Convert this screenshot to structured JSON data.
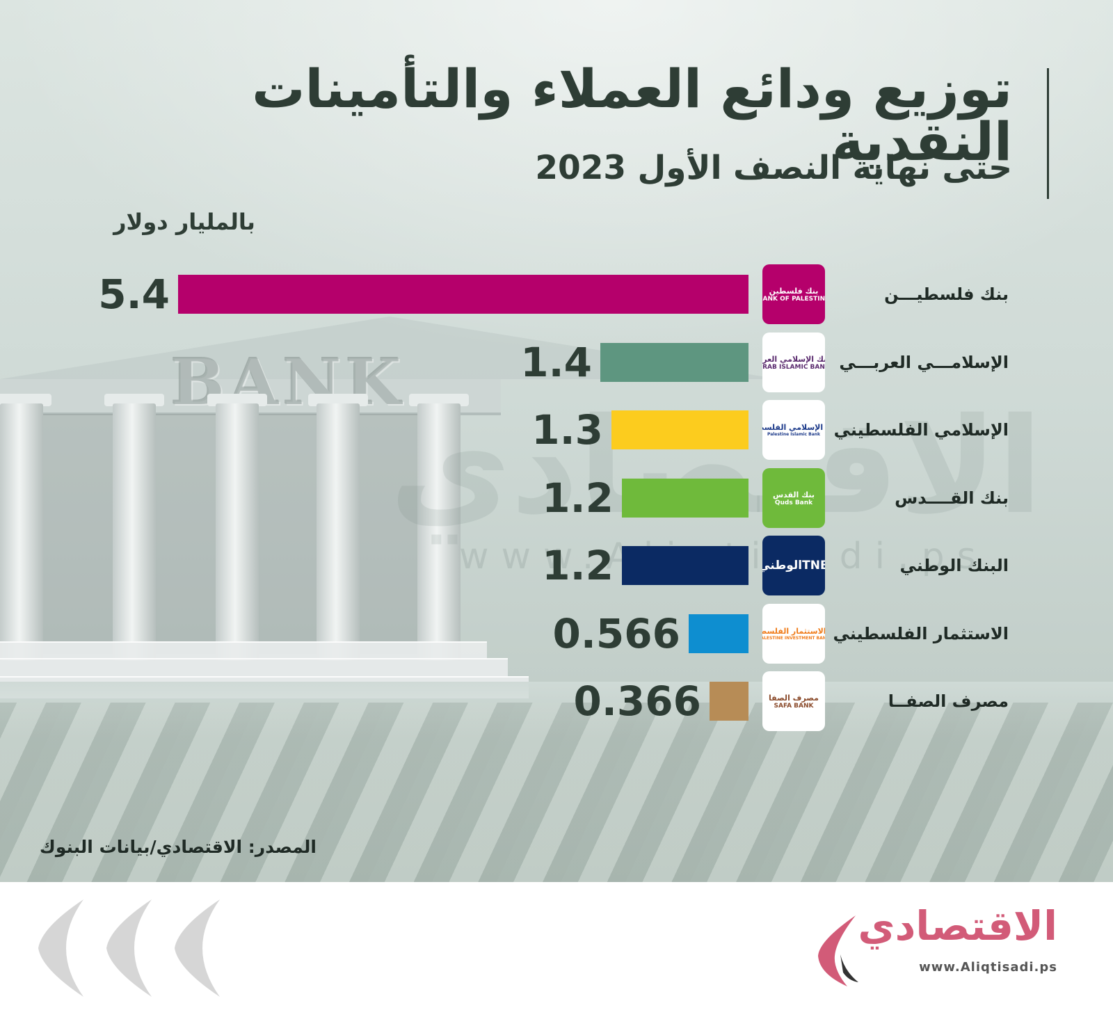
{
  "header": {
    "title": "توزيع ودائع العملاء والتأمينات النقدية",
    "subtitle": "حتى نهاية النصف الأول 2023",
    "unit": "بالمليار دولار"
  },
  "background": {
    "building_word": "BANK",
    "watermark_arabic": "الاقتصادي",
    "watermark_url": "www.Aliqtisadi.ps"
  },
  "chart_data": {
    "type": "bar",
    "orientation": "horizontal",
    "categories": [
      "بنك فلسطيـــن",
      "الإسلامـــي العربـــي",
      "الإسلامي الفلسطيني",
      "بنك القــــدس",
      "البنك الوطني",
      "الاستثمار الفلسطيني",
      "مصرف الصفــا"
    ],
    "values": [
      5.4,
      1.4,
      1.3,
      1.2,
      1.2,
      0.566,
      0.366
    ],
    "value_labels": [
      "5.4",
      "1.4",
      "1.3",
      "1.2",
      "1.2",
      "0.566",
      "0.366"
    ],
    "colors": [
      "#b5006b",
      "#5e9680",
      "#fccc1e",
      "#6fba3b",
      "#0b2a63",
      "#0e8ed0",
      "#b78c56"
    ],
    "title": "توزيع ودائع العملاء والتأمينات النقدية",
    "subtitle": "حتى نهاية النصف الأول 2023",
    "unit": "بالمليار دولار",
    "xlim": [
      0,
      5.4
    ],
    "grid": false
  },
  "logos": [
    {
      "icon": "bank-of-palestine-logo-icon",
      "text_ar": "بنك فلسطين",
      "text_en": "BANK OF PALESTINE",
      "bg": "#b5006b",
      "fg": "#ffffff"
    },
    {
      "icon": "arab-islamic-bank-logo-icon",
      "text_ar": "البنك الإسلامي العربي",
      "text_en": "ARAB ISLAMIC BANK",
      "bg": "#ffffff",
      "fg": "#5a2a6e"
    },
    {
      "icon": "palestine-islamic-bank-logo-icon",
      "text_ar": "البنك الإسلامي الفلسطيني",
      "text_en": "Palestine Islamic Bank",
      "bg": "#ffffff",
      "fg": "#1c3a8a"
    },
    {
      "icon": "quds-bank-logo-icon",
      "text_ar": "بنك القدس",
      "text_en": "Quds Bank",
      "bg": "#6fba3b",
      "fg": "#ffffff"
    },
    {
      "icon": "tnb-logo-icon",
      "text_ar": "TNBالوطني",
      "text_en": "",
      "bg": "#0b2a63",
      "fg": "#ffffff"
    },
    {
      "icon": "palestine-investment-bank-logo-icon",
      "text_ar": "بنك الاستثمار الفلسطيني",
      "text_en": "PALESTINE INVESTMENT BANK",
      "bg": "#ffffff",
      "fg": "#f07c1a"
    },
    {
      "icon": "safa-bank-logo-icon",
      "text_ar": "مصرف الصفا",
      "text_en": "SAFA BANK",
      "bg": "#ffffff",
      "fg": "#8a4a2a"
    }
  ],
  "source": "المصدر: الاقتصادي/بيانات البنوك",
  "footer": {
    "brand": "الاقتصادي",
    "url": "www.Aliqtisadi.ps",
    "brand_color": "#d25b78"
  }
}
